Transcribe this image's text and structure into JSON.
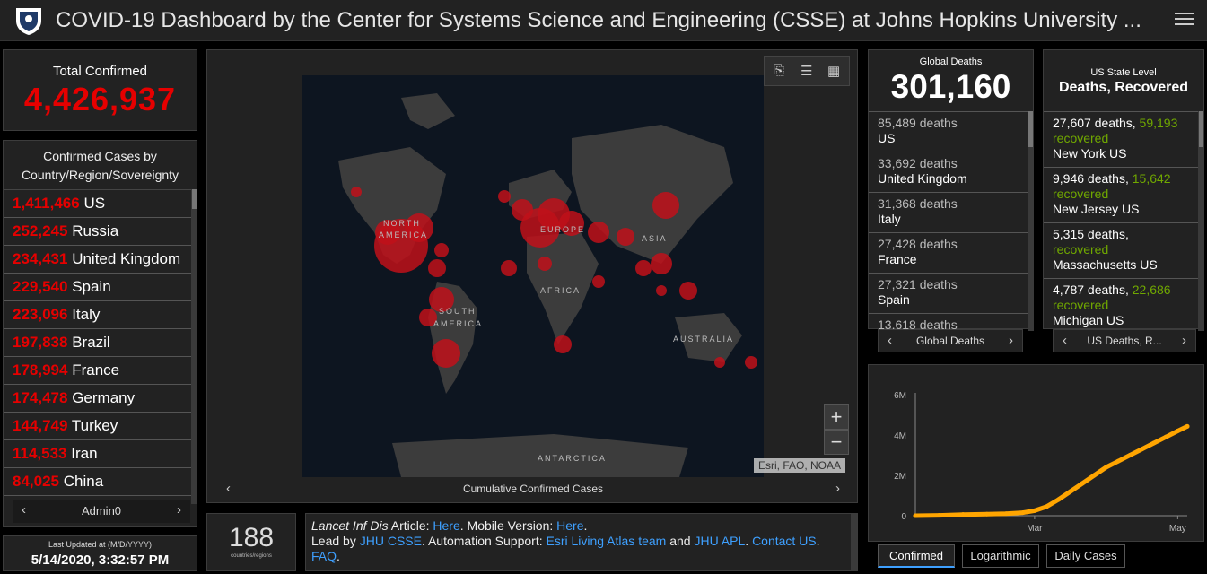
{
  "header": {
    "title": "COVID-19 Dashboard by the Center for Systems Science and Engineering (CSSE) at Johns Hopkins University ..."
  },
  "total": {
    "label": "Total Confirmed",
    "value": "4,426,937"
  },
  "country_list": {
    "header": "Confirmed Cases by Country/Region/Sovereignty",
    "items": [
      {
        "num": "1,411,466",
        "name": "US"
      },
      {
        "num": "252,245",
        "name": "Russia"
      },
      {
        "num": "234,431",
        "name": "United Kingdom"
      },
      {
        "num": "229,540",
        "name": "Spain"
      },
      {
        "num": "223,096",
        "name": "Italy"
      },
      {
        "num": "197,838",
        "name": "Brazil"
      },
      {
        "num": "178,994",
        "name": "France"
      },
      {
        "num": "174,478",
        "name": "Germany"
      },
      {
        "num": "144,749",
        "name": "Turkey"
      },
      {
        "num": "114,533",
        "name": "Iran"
      },
      {
        "num": "84,025",
        "name": "China"
      }
    ],
    "pager_label": "Admin0"
  },
  "updated": {
    "label": "Last Updated at (M/D/YYYY)",
    "value": "5/14/2020, 3:32:57 PM"
  },
  "map": {
    "labels": [
      "NORTH",
      "AMERICA",
      "EUROPE",
      "ASIA",
      "AFRICA",
      "SOUTH",
      "AMERICA",
      "AUSTRALIA",
      "ANTARCTICA"
    ],
    "attribution": "Esri, FAO, NOAA",
    "pager_label": "Cumulative Confirmed Cases",
    "zoom_in": "+",
    "zoom_out": "−"
  },
  "countries": {
    "value": "188",
    "label": "countries/regions"
  },
  "info": {
    "line1_prefix": "Lancet Inf Dis",
    "line1_a": " Article: ",
    "here1": "Here",
    "line1_b": ". Mobile Version: ",
    "here2": "Here",
    "line1_c": ".",
    "lead_by": "Lead by ",
    "jhu_csse": "JHU CSSE",
    "automation": ". Automation Support: ",
    "esri": "Esri Living Atlas team",
    "and": " and ",
    "jhu_apl": "JHU APL",
    "sep": ". ",
    "contact": "Contact US",
    "faq": "FAQ",
    "end": "."
  },
  "global_deaths": {
    "label": "Global Deaths",
    "value": "301,160",
    "items": [
      {
        "deaths": "85,489 deaths",
        "place": "US"
      },
      {
        "deaths": "33,692 deaths",
        "place": "United Kingdom"
      },
      {
        "deaths": "31,368 deaths",
        "place": "Italy"
      },
      {
        "deaths": "27,428 deaths",
        "place": "France"
      },
      {
        "deaths": "27,321 deaths",
        "place": "Spain"
      },
      {
        "deaths": "13,618 deaths",
        "place": ""
      }
    ],
    "pager_label": "Global Deaths"
  },
  "us_state": {
    "label": "US State Level",
    "title": "Deaths, Recovered",
    "items": [
      {
        "deaths": "27,607 deaths, ",
        "rec_num": "59,193",
        "rec_label": "recovered",
        "place": "New York US"
      },
      {
        "deaths": "9,946 deaths, ",
        "rec_num": "15,642",
        "rec_label": "recovered",
        "place": "New Jersey US"
      },
      {
        "deaths": "5,315 deaths,",
        "rec_num": "",
        "rec_label": "recovered",
        "place": "Massachusetts US"
      },
      {
        "deaths": "4,787 deaths, ",
        "rec_num": "22,686",
        "rec_label": "recovered",
        "place": "Michigan US"
      }
    ],
    "pager_label": "US Deaths, R..."
  },
  "tabs": [
    {
      "label": "Confirmed",
      "active": true
    },
    {
      "label": "Logarithmic",
      "active": false
    },
    {
      "label": "Daily Cases",
      "active": false
    }
  ],
  "colors": {
    "confirmed_red": "#e60000",
    "recovered_green": "#70a800",
    "link_blue": "#3ea0ff",
    "line_orange": "#ffa500"
  },
  "chart_data": {
    "type": "line",
    "yticks": [
      "0",
      "2M",
      "4M",
      "6M"
    ],
    "xticks": [
      "Mar",
      "May"
    ],
    "ylim": [
      0,
      6000000
    ],
    "series": [
      {
        "x": [
          0,
          10,
          20,
          30,
          38,
          45,
          50,
          55,
          60,
          65,
          70,
          75,
          80,
          85,
          90,
          95,
          100,
          105,
          110,
          114
        ],
        "values": [
          0,
          20000,
          60000,
          80000,
          100000,
          150000,
          250000,
          450000,
          800000,
          1200000,
          1600000,
          2000000,
          2400000,
          2700000,
          3000000,
          3300000,
          3600000,
          3900000,
          4200000,
          4426937
        ]
      }
    ]
  }
}
